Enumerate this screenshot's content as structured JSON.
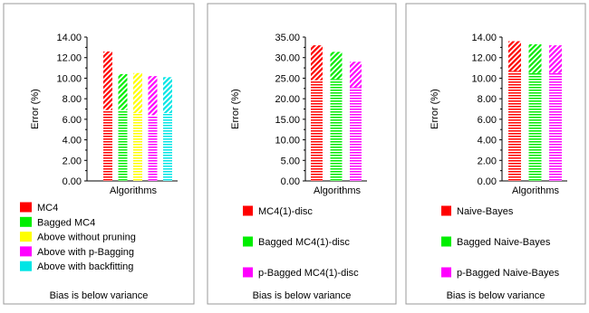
{
  "chart_data": [
    {
      "type": "bar",
      "stacked": true,
      "ylabel": "Error (%)",
      "xlabel": "Algorithms",
      "ylim": [
        0,
        14
      ],
      "yticks": [
        "0.00",
        "2.00",
        "4.00",
        "6.00",
        "8.00",
        "10.00",
        "12.00",
        "14.00"
      ],
      "legend_placement": "bottom",
      "series": [
        {
          "name": "MC4",
          "color": "#ff0000",
          "bias": 6.9,
          "variance": 5.7,
          "total": 12.6
        },
        {
          "name": "Bagged MC4",
          "color": "#00ee00",
          "bias": 6.9,
          "variance": 3.5,
          "total": 10.4
        },
        {
          "name": "Above without pruning",
          "color": "#ffff00",
          "bias": 6.6,
          "variance": 3.9,
          "total": 10.5
        },
        {
          "name": "Above with p-Bagging",
          "color": "#ff00ff",
          "bias": 6.4,
          "variance": 3.8,
          "total": 10.2
        },
        {
          "name": "Above with backfitting",
          "color": "#00e5e5",
          "bias": 6.6,
          "variance": 3.5,
          "total": 10.1
        }
      ],
      "note": "Bias is below variance"
    },
    {
      "type": "bar",
      "stacked": true,
      "ylabel": "Error (%)",
      "xlabel": "Algorithms",
      "ylim": [
        0,
        35
      ],
      "yticks": [
        "0.00",
        "5.00",
        "10.00",
        "15.00",
        "20.00",
        "25.00",
        "30.00",
        "35.00"
      ],
      "legend_placement": "bottom",
      "series": [
        {
          "name": "MC4(1)-disc",
          "color": "#ff0000",
          "bias": 24.5,
          "variance": 8.5,
          "total": 33.0
        },
        {
          "name": "Bagged MC4(1)-disc",
          "color": "#00ee00",
          "bias": 24.8,
          "variance": 6.6,
          "total": 31.4
        },
        {
          "name": "p-Bagged MC4(1)-disc",
          "color": "#ff00ff",
          "bias": 22.8,
          "variance": 6.2,
          "total": 29.0
        }
      ],
      "note": "Bias is below variance"
    },
    {
      "type": "bar",
      "stacked": true,
      "ylabel": "Error (%)",
      "xlabel": "Algorithms",
      "ylim": [
        0,
        14
      ],
      "yticks": [
        "0.00",
        "2.00",
        "4.00",
        "6.00",
        "8.00",
        "10.00",
        "12.00",
        "14.00"
      ],
      "legend_placement": "bottom",
      "series": [
        {
          "name": "Naive-Bayes",
          "color": "#ff0000",
          "bias": 10.7,
          "variance": 2.9,
          "total": 13.6
        },
        {
          "name": "Bagged Naive-Bayes",
          "color": "#00ee00",
          "bias": 10.5,
          "variance": 2.8,
          "total": 13.3
        },
        {
          "name": "p-Bagged Naive-Bayes",
          "color": "#ff00ff",
          "bias": 10.5,
          "variance": 2.7,
          "total": 13.2
        }
      ],
      "note": "Bias is below variance"
    }
  ]
}
